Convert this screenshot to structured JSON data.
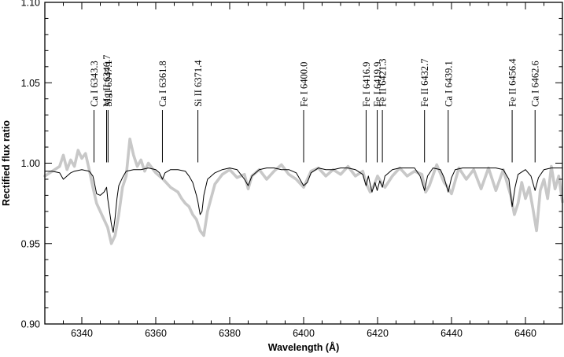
{
  "chart_data": {
    "type": "line",
    "xlabel": "Wavelength (Å)",
    "ylabel": "Rectified flux ratio",
    "xlim": [
      6330,
      6470
    ],
    "ylim": [
      0.9,
      1.1
    ],
    "xticks": [
      6340,
      6360,
      6380,
      6400,
      6420,
      6440,
      6460
    ],
    "yticks": [
      0.9,
      0.95,
      1.0,
      1.05,
      1.1
    ],
    "xtick_labels": [
      "6340",
      "6360",
      "6380",
      "6400",
      "6420",
      "6440",
      "6460"
    ],
    "ytick_labels": [
      "0.90",
      "0.95",
      "1.00",
      "1.05",
      "1.10"
    ],
    "line_labels": [
      {
        "label": "Ca I 6343.3",
        "wavelength": 6343.3
      },
      {
        "label": "Mg II 6346.7",
        "wavelength": 6346.7
      },
      {
        "label": "Si II 6347.1",
        "wavelength": 6347.1
      },
      {
        "label": "Ca I 6361.8",
        "wavelength": 6361.8
      },
      {
        "label": "Si II 6371.4",
        "wavelength": 6371.4
      },
      {
        "label": "Fe I 6400.0",
        "wavelength": 6400.0
      },
      {
        "label": "Fe I 6416.9",
        "wavelength": 6416.9
      },
      {
        "label": "Fe I 6419.9",
        "wavelength": 6419.9
      },
      {
        "label": "Fe II 6421.3",
        "wavelength": 6421.3
      },
      {
        "label": "Fe II 6432.7",
        "wavelength": 6432.7
      },
      {
        "label": "Ca I 6439.1",
        "wavelength": 6439.1
      },
      {
        "label": "Fe II 6456.4",
        "wavelength": 6456.4
      },
      {
        "label": "Ca I 6462.6",
        "wavelength": 6462.6
      }
    ],
    "series": [
      {
        "style": "thick light gray (observed)",
        "color": "#c8c8c8",
        "x": [
          6330,
          6332,
          6334,
          6335,
          6336,
          6337,
          6338,
          6339,
          6340,
          6341,
          6342,
          6343,
          6344,
          6345,
          6346,
          6347,
          6348,
          6349,
          6350,
          6351,
          6352,
          6353,
          6354,
          6355,
          6356,
          6357,
          6358,
          6360,
          6362,
          6364,
          6366,
          6367,
          6368,
          6369,
          6370,
          6371,
          6372,
          6373,
          6374,
          6376,
          6378,
          6380,
          6382,
          6384,
          6385,
          6386,
          6388,
          6390,
          6392,
          6394,
          6396,
          6398,
          6400,
          6401,
          6402,
          6404,
          6406,
          6408,
          6410,
          6412,
          6414,
          6416,
          6417,
          6418,
          6419,
          6420,
          6421,
          6422,
          6424,
          6426,
          6428,
          6430,
          6432,
          6433,
          6434,
          6436,
          6438,
          6439,
          6440,
          6442,
          6444,
          6446,
          6448,
          6450,
          6452,
          6454,
          6456,
          6457,
          6458,
          6459,
          6460,
          6461,
          6462,
          6463,
          6464,
          6465,
          6466,
          6467,
          6468,
          6469,
          6470
        ],
        "y": [
          0.992,
          0.995,
          0.998,
          1.005,
          0.996,
          1.002,
          0.998,
          1.008,
          1.003,
          1.006,
          0.996,
          0.985,
          0.975,
          0.97,
          0.965,
          0.96,
          0.95,
          0.955,
          0.968,
          0.985,
          0.992,
          1.015,
          1.005,
          0.998,
          1.002,
          0.995,
          1.0,
          0.994,
          0.99,
          0.985,
          0.982,
          0.978,
          0.975,
          0.973,
          0.968,
          0.965,
          0.958,
          0.955,
          0.97,
          0.987,
          0.993,
          0.996,
          0.991,
          0.993,
          0.984,
          0.992,
          0.996,
          0.99,
          0.995,
          0.999,
          0.993,
          0.99,
          0.985,
          0.99,
          0.995,
          0.997,
          0.992,
          0.996,
          0.993,
          0.998,
          0.992,
          0.995,
          0.987,
          0.982,
          0.986,
          0.992,
          0.988,
          0.985,
          0.992,
          0.997,
          0.992,
          0.995,
          0.993,
          0.982,
          0.986,
          0.999,
          0.988,
          0.985,
          0.981,
          0.997,
          0.99,
          0.996,
          0.984,
          0.997,
          0.983,
          0.996,
          0.98,
          0.968,
          0.975,
          0.988,
          0.978,
          0.985,
          0.972,
          0.958,
          0.983,
          0.99,
          0.978,
          0.998,
          0.984,
          0.992,
          0.976
        ]
      },
      {
        "style": "thin black (model)",
        "color": "#000000",
        "x": [
          6330,
          6332,
          6334,
          6335,
          6336,
          6337,
          6338,
          6340,
          6342,
          6343,
          6343.3,
          6344,
          6345,
          6346,
          6346.7,
          6347,
          6347.5,
          6348,
          6348.5,
          6349,
          6349.5,
          6350,
          6351,
          6352,
          6354,
          6356,
          6358,
          6360,
          6361,
          6361.8,
          6362.5,
          6364,
          6366,
          6368,
          6369,
          6370,
          6371,
          6371.4,
          6372,
          6372.5,
          6373,
          6374,
          6376,
          6378,
          6380,
          6382,
          6384,
          6385,
          6386,
          6388,
          6390,
          6392,
          6394,
          6396,
          6398,
          6399,
          6400,
          6401,
          6402,
          6404,
          6406,
          6408,
          6410,
          6412,
          6414,
          6416,
          6416.9,
          6417.5,
          6418.5,
          6419.3,
          6419.9,
          6420.6,
          6421.3,
          6422,
          6424,
          6426,
          6428,
          6430,
          6431.5,
          6432.7,
          6433.5,
          6435,
          6437,
          6438,
          6439.1,
          6440,
          6441,
          6443,
          6446,
          6449,
          6452,
          6454,
          6455.5,
          6456.4,
          6457.2,
          6458,
          6460,
          6461.5,
          6462.6,
          6463.5,
          6465,
          6467,
          6470
        ],
        "y": [
          0.995,
          0.995,
          0.994,
          0.99,
          0.992,
          0.994,
          0.995,
          0.996,
          0.995,
          0.992,
          0.989,
          0.981,
          0.98,
          0.982,
          0.985,
          0.978,
          0.97,
          0.962,
          0.957,
          0.966,
          0.978,
          0.986,
          0.991,
          0.995,
          0.996,
          0.996,
          0.997,
          0.996,
          0.994,
          0.99,
          0.994,
          0.996,
          0.996,
          0.995,
          0.992,
          0.988,
          0.98,
          0.976,
          0.968,
          0.97,
          0.98,
          0.99,
          0.994,
          0.996,
          0.997,
          0.996,
          0.99,
          0.986,
          0.992,
          0.996,
          0.997,
          0.997,
          0.996,
          0.996,
          0.994,
          0.99,
          0.986,
          0.988,
          0.994,
          0.997,
          0.996,
          0.996,
          0.997,
          0.997,
          0.996,
          0.993,
          0.986,
          0.992,
          0.982,
          0.988,
          0.983,
          0.989,
          0.985,
          0.992,
          0.996,
          0.997,
          0.997,
          0.997,
          0.992,
          0.983,
          0.992,
          0.997,
          0.996,
          0.991,
          0.982,
          0.991,
          0.996,
          0.997,
          0.997,
          0.997,
          0.997,
          0.996,
          0.99,
          0.973,
          0.985,
          0.993,
          0.996,
          0.992,
          0.983,
          0.991,
          0.996,
          0.997,
          0.997
        ]
      }
    ],
    "grid": false,
    "legend": "none"
  }
}
